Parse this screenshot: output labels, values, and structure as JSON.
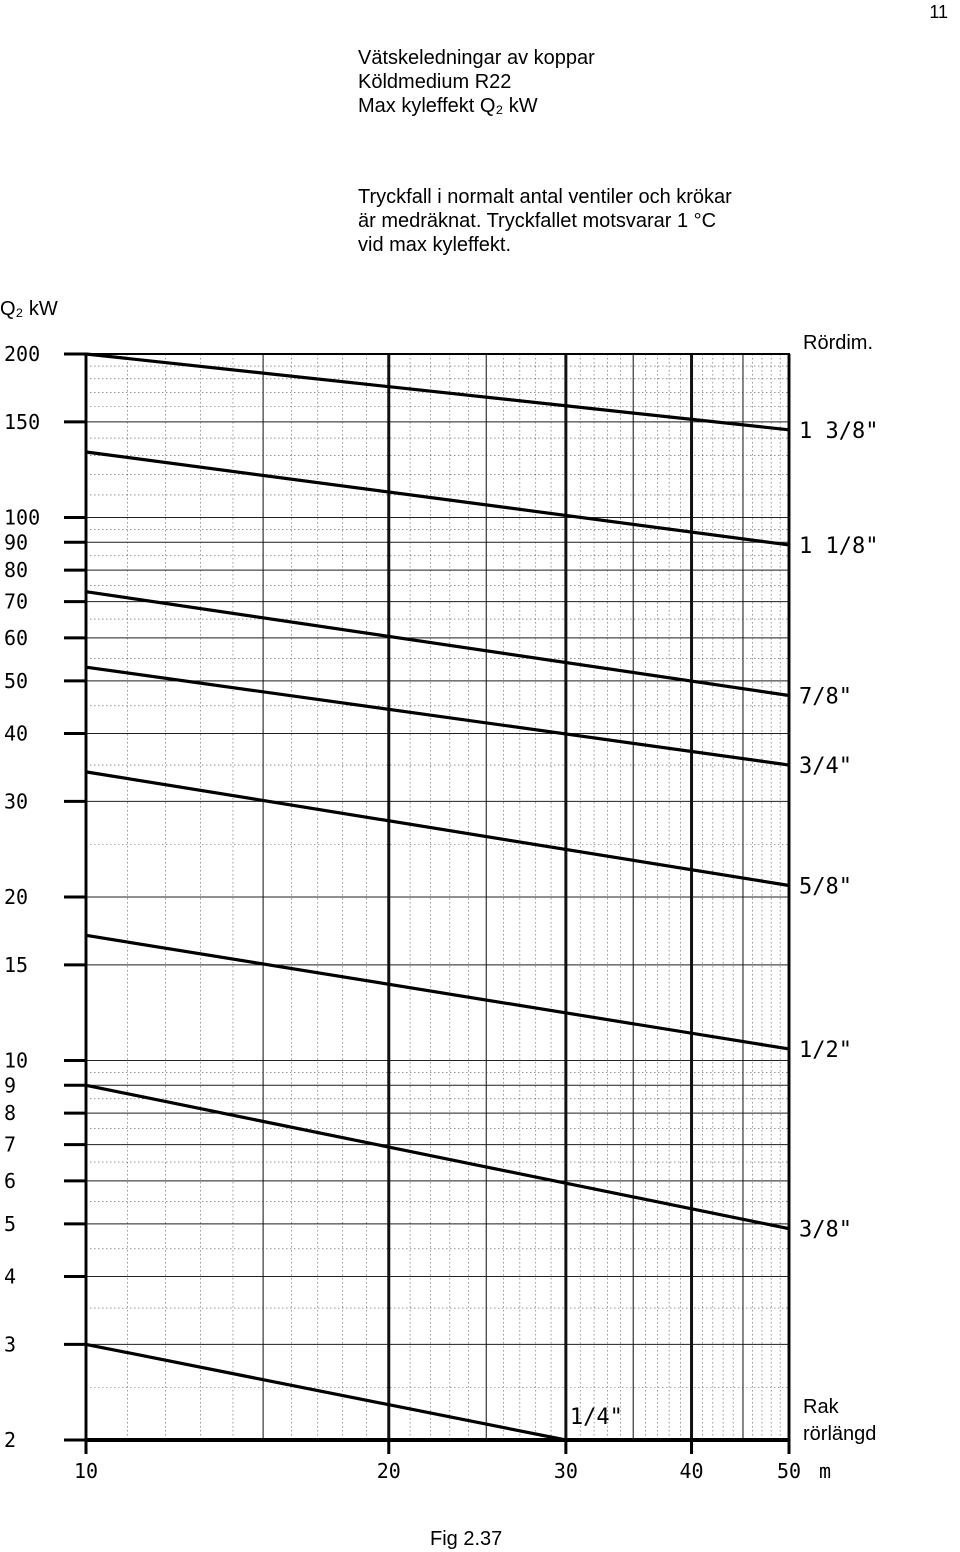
{
  "page_number": "11",
  "title_lines": [
    "Vätskeledningar  av koppar",
    "Köldmedium R22",
    "Max  kyleffekt Q₂ kW"
  ],
  "note_lines": [
    "Tryckfall i normalt antal ventiler och krökar",
    "är medräknat. Tryckfallet motsvarar 1 °C",
    "vid max kyleffekt."
  ],
  "figure_caption": "Fig 2.37",
  "chart_data": {
    "type": "line",
    "y_scale": "log",
    "ylabel": "Q₂ kW",
    "xlabel_lines": [
      "Rak",
      "rörlängd"
    ],
    "x_unit": "m",
    "legend_title": "Rördim.",
    "xlim": [
      10,
      50
    ],
    "ylim": [
      2,
      200
    ],
    "x_ticks": [
      10,
      20,
      30,
      40,
      50
    ],
    "y_ticks": [
      2,
      3,
      4,
      5,
      6,
      7,
      8,
      9,
      10,
      15,
      20,
      30,
      40,
      50,
      60,
      70,
      80,
      90,
      100,
      150,
      200
    ],
    "x_tick_labels": [
      "10",
      "20",
      "30",
      "40",
      "50"
    ],
    "y_tick_labels": [
      "2",
      "3",
      "4",
      "5",
      "6",
      "7",
      "8",
      "9",
      "10",
      "15",
      "20",
      "30",
      "40",
      "50",
      "60",
      "70",
      "80",
      "90",
      "100",
      "150",
      "200"
    ],
    "series": [
      {
        "name": "1 3/8\"",
        "x": [
          10,
          50
        ],
        "y": [
          200,
          145
        ]
      },
      {
        "name": "1 1/8\"",
        "x": [
          10,
          50
        ],
        "y": [
          132,
          89
        ]
      },
      {
        "name": "7/8\"",
        "x": [
          10,
          50
        ],
        "y": [
          73,
          47
        ]
      },
      {
        "name": "3/4\"",
        "x": [
          10,
          50
        ],
        "y": [
          53,
          35
        ]
      },
      {
        "name": "5/8\"",
        "x": [
          10,
          50
        ],
        "y": [
          34,
          21
        ]
      },
      {
        "name": "1/2\"",
        "x": [
          10,
          50
        ],
        "y": [
          17,
          10.5
        ]
      },
      {
        "name": "3/8\"",
        "x": [
          10,
          50
        ],
        "y": [
          9,
          4.9
        ]
      },
      {
        "name": "1/4\"",
        "x": [
          10,
          30
        ],
        "y": [
          3,
          2
        ]
      }
    ]
  }
}
